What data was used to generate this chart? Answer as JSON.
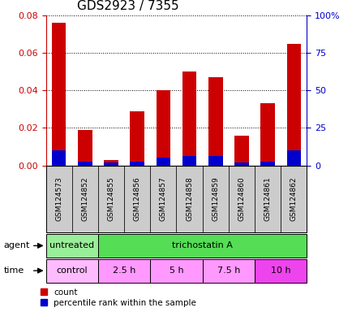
{
  "title": "GDS2923 / 7355",
  "samples": [
    "GSM124573",
    "GSM124852",
    "GSM124855",
    "GSM124856",
    "GSM124857",
    "GSM124858",
    "GSM124859",
    "GSM124860",
    "GSM124861",
    "GSM124862"
  ],
  "count_values": [
    0.076,
    0.019,
    0.003,
    0.029,
    0.04,
    0.05,
    0.047,
    0.016,
    0.033,
    0.065
  ],
  "percentile_values": [
    0.008,
    0.002,
    0.0015,
    0.002,
    0.004,
    0.005,
    0.005,
    0.0015,
    0.002,
    0.008
  ],
  "left_ylim": [
    0,
    0.08
  ],
  "left_yticks": [
    0,
    0.02,
    0.04,
    0.06,
    0.08
  ],
  "right_ylim": [
    0,
    100
  ],
  "right_yticks": [
    0,
    25,
    50,
    75,
    100
  ],
  "right_yticklabels": [
    "0",
    "25",
    "50",
    "75",
    "100%"
  ],
  "count_color": "#cc0000",
  "percentile_color": "#0000cc",
  "bar_width": 0.55,
  "agent_labels": [
    {
      "text": "untreated",
      "start": 0,
      "end": 2,
      "color": "#99ee99"
    },
    {
      "text": "trichostatin A",
      "start": 2,
      "end": 10,
      "color": "#55dd55"
    }
  ],
  "time_colors": [
    "#ffbbff",
    "#ff99ff",
    "#ff99ff",
    "#ff99ff",
    "#ee44ee"
  ],
  "time_labels": [
    {
      "text": "control",
      "start": 0,
      "end": 2
    },
    {
      "text": "2.5 h",
      "start": 2,
      "end": 4
    },
    {
      "text": "5 h",
      "start": 4,
      "end": 6
    },
    {
      "text": "7.5 h",
      "start": 6,
      "end": 8
    },
    {
      "text": "10 h",
      "start": 8,
      "end": 10
    }
  ],
  "sample_bg_color": "#cccccc",
  "legend_count_label": "count",
  "legend_percentile_label": "percentile rank within the sample"
}
